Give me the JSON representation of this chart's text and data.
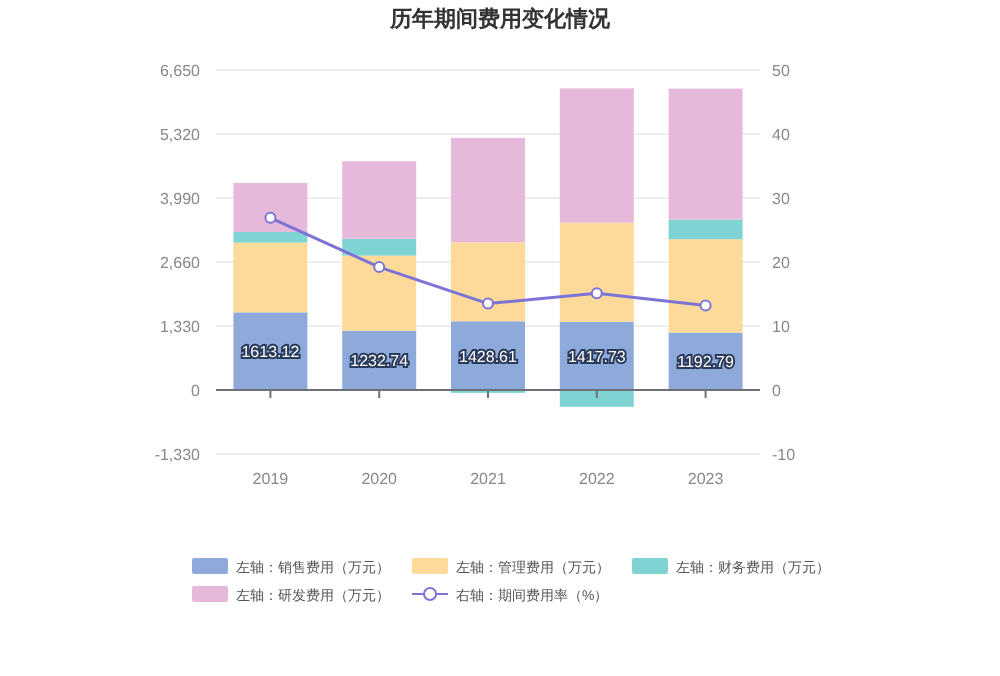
{
  "chart_data": {
    "type": "bar",
    "title": "历年期间费用变化情况",
    "stacked": true,
    "categories": [
      "2019",
      "2020",
      "2021",
      "2022",
      "2023"
    ],
    "series": [
      {
        "name": "左轴：销售费用（万元）",
        "color": "#8eaadb",
        "values": [
          1613.12,
          1232.74,
          1428.61,
          1417.73,
          1192.79
        ],
        "value_labels": [
          "1613.12",
          "1232.74",
          "1428.61",
          "1417.73",
          "1192.79"
        ]
      },
      {
        "name": "左轴：管理费用（万元）",
        "color": "#fdd99a",
        "values": [
          1450,
          1560,
          1640,
          2060,
          1940
        ]
      },
      {
        "name": "左轴：财务费用（万元）",
        "color": "#7fd3d3",
        "values": [
          220,
          350,
          -60,
          -350,
          410
        ]
      },
      {
        "name": "左轴：研发费用（万元）",
        "color": "#e6b8d9",
        "values": [
          1020,
          1610,
          2170,
          2790,
          2720
        ]
      },
      {
        "name": "右轴：期间费用率（%）",
        "type": "line",
        "axis": "y2",
        "color": "#7b74d6",
        "marker": "circle",
        "values": [
          26.9,
          19.2,
          13.5,
          15.1,
          13.2
        ]
      }
    ],
    "ylim": [
      -1330,
      6650
    ],
    "yticks": [
      {
        "value": -1330,
        "label": "-1,330"
      },
      0,
      {
        "value": 1330,
        "label": "1,330"
      },
      {
        "value": 2660,
        "label": "2,660"
      },
      {
        "value": 3990,
        "label": "3,990"
      },
      {
        "value": 5320,
        "label": "5,320"
      },
      {
        "value": 6650,
        "label": "6,650"
      }
    ],
    "y2lim": [
      -10,
      50
    ],
    "y2ticks": [
      -10,
      0,
      10,
      20,
      30,
      40,
      50
    ],
    "grid": "y",
    "legend": "bottom"
  }
}
